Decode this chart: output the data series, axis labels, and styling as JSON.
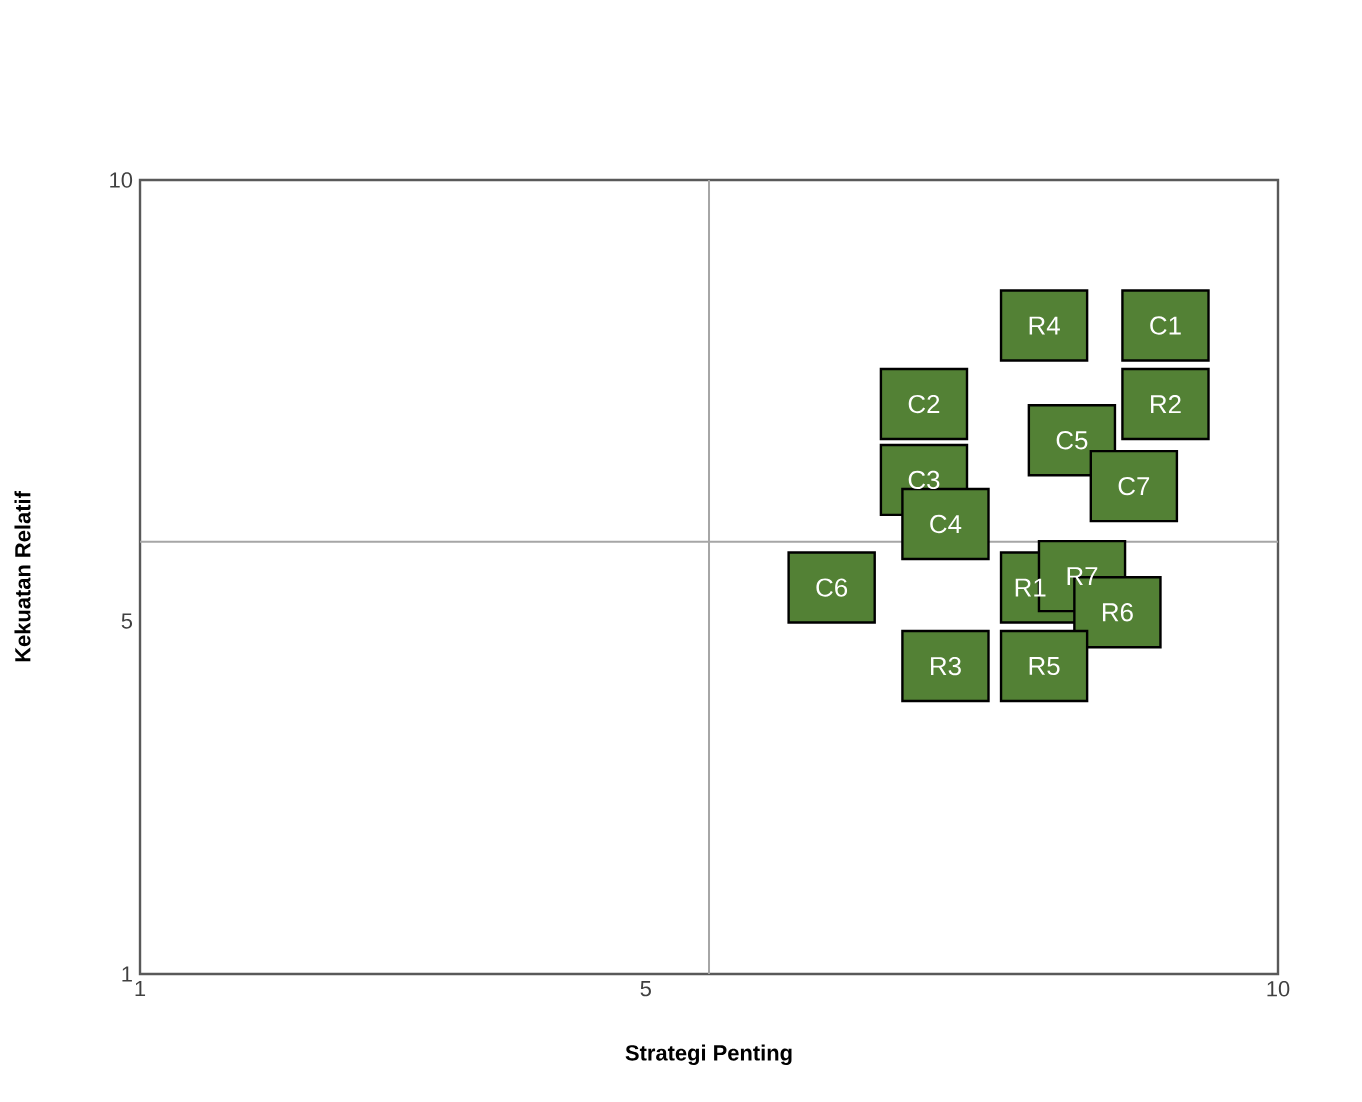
{
  "chart_data": {
    "type": "scatter",
    "xlabel": "Strategi Penting",
    "ylabel": "Kekuatan Relatif",
    "x": [
      8.15,
      9.11,
      7.2,
      9.11,
      8.37,
      7.2,
      8.86,
      7.37,
      6.47,
      8.15,
      8.45,
      8.73,
      7.37,
      8.15
    ],
    "series": [
      {
        "color": "#538135",
        "values": [
          8.35,
          8.35,
          7.46,
          7.46,
          7.05,
          6.6,
          6.53,
          6.1,
          5.38,
          5.38,
          5.51,
          5.1,
          4.49,
          4.49
        ]
      }
    ],
    "marker": "square",
    "grid": false,
    "xlim": [
      1,
      10
    ],
    "ylim": [
      1,
      10
    ],
    "xticks": [
      1,
      5,
      10
    ],
    "yticks": [
      1,
      5,
      10
    ],
    "ref_lines": [
      {
        "axis": "x",
        "value": 5.5,
        "color": "#a6a6a6"
      },
      {
        "axis": "y",
        "value": 5.9,
        "color": "#a6a6a6"
      }
    ],
    "annotations": [
      {
        "text": "R4",
        "x": 8.15,
        "y": 8.35
      },
      {
        "text": "C1",
        "x": 9.11,
        "y": 8.35
      },
      {
        "text": "C2",
        "x": 7.2,
        "y": 7.46
      },
      {
        "text": "R2",
        "x": 9.11,
        "y": 7.46
      },
      {
        "text": "C5",
        "x": 8.37,
        "y": 7.05
      },
      {
        "text": "C3",
        "x": 7.2,
        "y": 6.6
      },
      {
        "text": "C7",
        "x": 8.86,
        "y": 6.53
      },
      {
        "text": "C4",
        "x": 7.37,
        "y": 6.1
      },
      {
        "text": "C6",
        "x": 6.47,
        "y": 5.38
      },
      {
        "text": "R1",
        "x": 8.04,
        "y": 5.38
      },
      {
        "text": "R7",
        "x": 8.45,
        "y": 5.51
      },
      {
        "text": "R6",
        "x": 8.73,
        "y": 5.1
      },
      {
        "text": "R3",
        "x": 7.37,
        "y": 4.49
      },
      {
        "text": "R5",
        "x": 8.15,
        "y": 4.49
      }
    ]
  }
}
